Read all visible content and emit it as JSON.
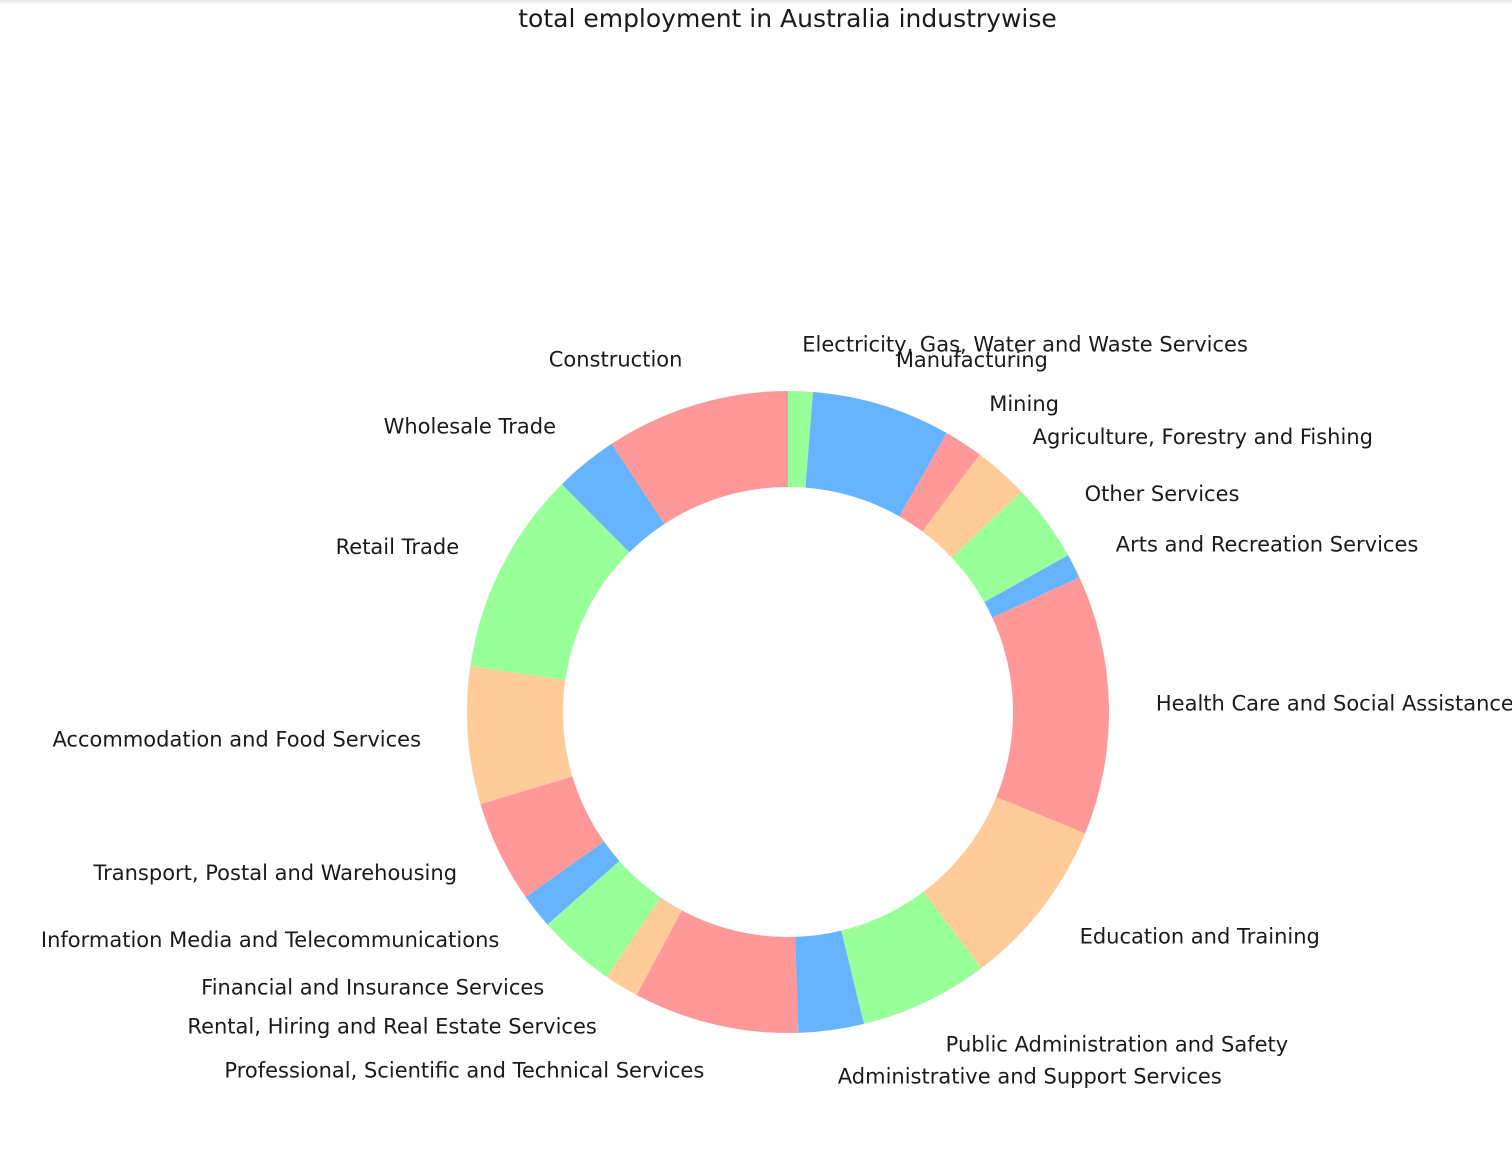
{
  "chart_data": {
    "type": "pie",
    "donut": true,
    "title": "total employment in Australia industrywise",
    "start_angle_deg": 90,
    "direction": "counterclockwise",
    "colors": [
      "#ff9999",
      "#66b3ff",
      "#99ff99",
      "#ffcc99"
    ],
    "slices": [
      {
        "label": "Construction",
        "value": 9.0
      },
      {
        "label": "Wholesale Trade",
        "value": 3.1
      },
      {
        "label": "Retail Trade",
        "value": 10.0
      },
      {
        "label": "Accommodation and Food Services",
        "value": 6.7
      },
      {
        "label": "Transport, Postal and Warehousing",
        "value": 5.0
      },
      {
        "label": "Information Media and Telecommunications",
        "value": 1.7
      },
      {
        "label": "Financial and Insurance Services",
        "value": 3.8
      },
      {
        "label": "Rental, Hiring and Real Estate Services",
        "value": 1.7
      },
      {
        "label": "Professional, Scientific and Technical Services",
        "value": 8.1
      },
      {
        "label": "Administrative and Support Services",
        "value": 3.2
      },
      {
        "label": "Public Administration and Safety",
        "value": 6.3
      },
      {
        "label": "Education and Training",
        "value": 8.3
      },
      {
        "label": "Health Care and Social Assistance",
        "value": 12.7
      },
      {
        "label": "Arts and Recreation Services",
        "value": 1.2
      },
      {
        "label": "Other Services",
        "value": 3.8
      },
      {
        "label": "Agriculture, Forestry and Fishing",
        "value": 2.7
      },
      {
        "label": "Mining",
        "value": 1.9
      },
      {
        "label": "Manufacturing",
        "value": 6.8
      },
      {
        "label": "Electricity, Gas, Water and Waste Services",
        "value": 1.2
      }
    ]
  }
}
